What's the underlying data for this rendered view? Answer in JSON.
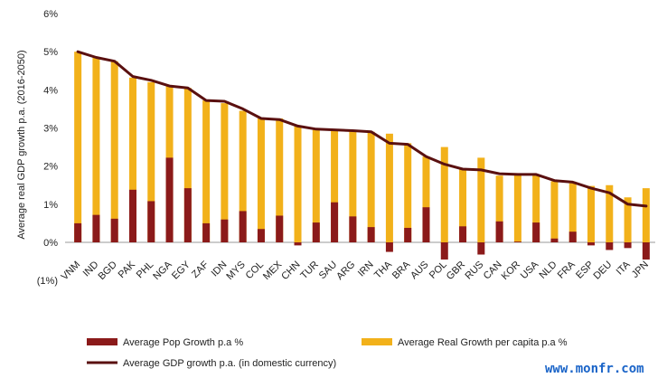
{
  "chart_data": {
    "type": "bar",
    "ylabel": "Average real GDP growth p.a. (2016-2050)",
    "ylim": [
      -1,
      6
    ],
    "yticks": [
      6,
      5,
      4,
      3,
      2,
      1,
      0,
      -1
    ],
    "ytick_labels": [
      "6%",
      "5%",
      "4%",
      "3%",
      "2%",
      "1%",
      "0%",
      "(1%)"
    ],
    "categories": [
      "VNM",
      "IND",
      "BGD",
      "PAK",
      "PHL",
      "NGA",
      "EGY",
      "ZAF",
      "IDN",
      "MYS",
      "COL",
      "MEX",
      "CHN",
      "TUR",
      "SAU",
      "ARG",
      "IRN",
      "THA",
      "BRA",
      "AUS",
      "POL",
      "GBR",
      "RUS",
      "CAN",
      "KOR",
      "USA",
      "NLD",
      "FRA",
      "ESP",
      "DEU",
      "ITA",
      "JPN"
    ],
    "series": [
      {
        "name": "Average Pop Growth p.a %",
        "type": "bar",
        "color": "#8b1a1a",
        "values": [
          0.5,
          0.72,
          0.62,
          1.38,
          1.08,
          2.22,
          1.42,
          0.5,
          0.6,
          0.82,
          0.35,
          0.7,
          -0.08,
          0.52,
          1.05,
          0.68,
          0.4,
          -0.25,
          0.38,
          0.92,
          -0.45,
          0.42,
          -0.32,
          0.55,
          0.02,
          0.52,
          0.1,
          0.28,
          -0.08,
          -0.2,
          -0.15,
          -0.45
        ]
      },
      {
        "name": "Average Real Growth per capita p.a %",
        "type": "bar",
        "color": "#f2b11a",
        "values": [
          5.0,
          4.85,
          4.75,
          4.32,
          4.2,
          4.1,
          4.05,
          3.72,
          3.65,
          3.45,
          3.25,
          3.25,
          3.05,
          2.95,
          2.95,
          2.93,
          2.9,
          2.85,
          2.6,
          2.25,
          2.5,
          1.92,
          2.22,
          1.75,
          1.78,
          1.78,
          1.6,
          1.55,
          1.48,
          1.5,
          1.18,
          1.42
        ]
      },
      {
        "name": "Average GDP growth p.a. (in domestic currency)",
        "type": "line",
        "color": "#5a1010",
        "values": [
          5.0,
          4.85,
          4.75,
          4.35,
          4.25,
          4.1,
          4.05,
          3.72,
          3.7,
          3.5,
          3.25,
          3.22,
          3.05,
          2.97,
          2.95,
          2.93,
          2.9,
          2.6,
          2.57,
          2.25,
          2.05,
          1.92,
          1.9,
          1.8,
          1.78,
          1.78,
          1.62,
          1.58,
          1.42,
          1.3,
          1.0,
          0.95
        ]
      }
    ],
    "legend_position": "bottom",
    "grid": false
  },
  "watermark": "www.monfr.com"
}
